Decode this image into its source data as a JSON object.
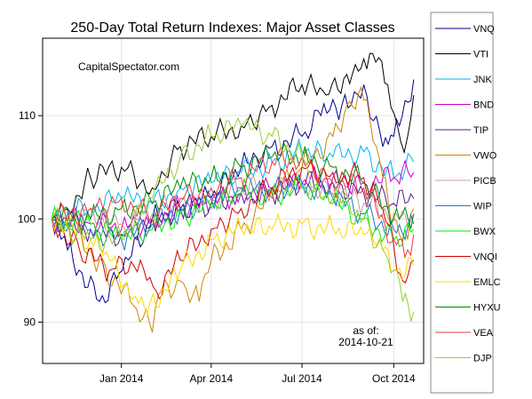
{
  "chart_data": {
    "type": "line",
    "title": "250-Day Total Return Indexes: Major Asset Classes",
    "source_label": "CapitalSpectator.com",
    "asof_label": "as of:",
    "asof_date": "2014-10-21",
    "xlabel": "",
    "ylabel": "",
    "x_start": "2013-10-23",
    "x_end": "2014-10-21",
    "xlim": [
      "2013-10-14",
      "2014-10-31"
    ],
    "ylim": [
      86,
      117.5
    ],
    "xticks": [
      {
        "date": "2014-01-01",
        "label": "Jan 2014"
      },
      {
        "date": "2014-04-01",
        "label": "Apr 2014"
      },
      {
        "date": "2014-07-01",
        "label": "Jul 2014"
      },
      {
        "date": "2014-10-01",
        "label": "Oct 2014"
      }
    ],
    "yticks": [
      {
        "value": 90,
        "label": "90"
      },
      {
        "value": 100,
        "label": "100"
      },
      {
        "value": 110,
        "label": "110"
      }
    ],
    "grid": true,
    "legend_position": "right",
    "series": [
      {
        "name": "VNQ",
        "color": "#00008B",
        "points": [
          [
            "2013-10-23",
            100
          ],
          [
            "2013-11-08",
            97
          ],
          [
            "2013-12-10",
            92
          ],
          [
            "2014-01-02",
            95
          ],
          [
            "2014-02-01",
            100
          ],
          [
            "2014-03-01",
            101
          ],
          [
            "2014-04-01",
            102
          ],
          [
            "2014-05-01",
            105
          ],
          [
            "2014-06-01",
            107
          ],
          [
            "2014-07-01",
            108
          ],
          [
            "2014-07-20",
            110
          ],
          [
            "2014-08-10",
            111
          ],
          [
            "2014-09-01",
            113
          ],
          [
            "2014-09-20",
            107
          ],
          [
            "2014-10-01",
            108
          ],
          [
            "2014-10-21",
            113.5
          ]
        ]
      },
      {
        "name": "VTI",
        "color": "#000000",
        "points": [
          [
            "2013-10-23",
            100
          ],
          [
            "2013-11-08",
            101
          ],
          [
            "2013-12-01",
            104
          ],
          [
            "2014-01-01",
            105
          ],
          [
            "2014-02-01",
            103
          ],
          [
            "2014-03-01",
            107
          ],
          [
            "2014-04-01",
            108
          ],
          [
            "2014-05-01",
            109
          ],
          [
            "2014-06-01",
            111
          ],
          [
            "2014-07-01",
            113
          ],
          [
            "2014-07-25",
            112
          ],
          [
            "2014-08-15",
            114
          ],
          [
            "2014-09-01",
            115.5
          ],
          [
            "2014-09-10",
            116
          ],
          [
            "2014-09-25",
            113
          ],
          [
            "2014-10-08",
            107.5
          ],
          [
            "2014-10-15",
            108
          ],
          [
            "2014-10-21",
            112
          ]
        ]
      },
      {
        "name": "JNK",
        "color": "#00B2EE",
        "points": [
          [
            "2013-10-23",
            100
          ],
          [
            "2013-12-01",
            101
          ],
          [
            "2014-01-01",
            102
          ],
          [
            "2014-02-01",
            101.5
          ],
          [
            "2014-03-01",
            103
          ],
          [
            "2014-04-01",
            103.5
          ],
          [
            "2014-05-01",
            104.5
          ],
          [
            "2014-06-01",
            105.5
          ],
          [
            "2014-07-01",
            106.5
          ],
          [
            "2014-08-01",
            106
          ],
          [
            "2014-09-01",
            106.5
          ],
          [
            "2014-10-01",
            104
          ],
          [
            "2014-10-21",
            105.5
          ]
        ]
      },
      {
        "name": "BND",
        "color": "#CD00CD",
        "points": [
          [
            "2013-10-23",
            100
          ],
          [
            "2013-12-01",
            99.5
          ],
          [
            "2014-01-01",
            99
          ],
          [
            "2014-02-01",
            100
          ],
          [
            "2014-03-01",
            101
          ],
          [
            "2014-04-01",
            101.5
          ],
          [
            "2014-05-01",
            102.5
          ],
          [
            "2014-06-01",
            103
          ],
          [
            "2014-07-01",
            103.5
          ],
          [
            "2014-08-01",
            104
          ],
          [
            "2014-09-01",
            103.5
          ],
          [
            "2014-10-01",
            104
          ],
          [
            "2014-10-21",
            104.5
          ]
        ]
      },
      {
        "name": "TIP",
        "color": "#551A8B",
        "points": [
          [
            "2013-10-23",
            100
          ],
          [
            "2013-12-01",
            99
          ],
          [
            "2014-01-01",
            98.5
          ],
          [
            "2014-02-01",
            100
          ],
          [
            "2014-03-01",
            101
          ],
          [
            "2014-04-01",
            101.5
          ],
          [
            "2014-05-01",
            102.5
          ],
          [
            "2014-06-01",
            102.5
          ],
          [
            "2014-07-01",
            103.5
          ],
          [
            "2014-08-01",
            103.5
          ],
          [
            "2014-09-01",
            102.5
          ],
          [
            "2014-10-01",
            101.5
          ],
          [
            "2014-10-21",
            102
          ]
        ]
      },
      {
        "name": "VWO",
        "color": "#CD8500",
        "points": [
          [
            "2013-10-23",
            100
          ],
          [
            "2013-11-15",
            98
          ],
          [
            "2013-12-10",
            96
          ],
          [
            "2014-01-10",
            92
          ],
          [
            "2014-02-01",
            89
          ],
          [
            "2014-02-10",
            93
          ],
          [
            "2014-03-01",
            94
          ],
          [
            "2014-03-20",
            92
          ],
          [
            "2014-04-01",
            96
          ],
          [
            "2014-05-01",
            99
          ],
          [
            "2014-06-01",
            102
          ],
          [
            "2014-07-01",
            105
          ],
          [
            "2014-08-01",
            108
          ],
          [
            "2014-08-15",
            111
          ],
          [
            "2014-09-01",
            111.5
          ],
          [
            "2014-09-20",
            104
          ],
          [
            "2014-10-01",
            100
          ],
          [
            "2014-10-15",
            98
          ],
          [
            "2014-10-21",
            101
          ]
        ]
      },
      {
        "name": "PICB",
        "color": "#CD9B9B",
        "points": [
          [
            "2013-10-23",
            100
          ],
          [
            "2013-12-01",
            100
          ],
          [
            "2014-01-01",
            99.5
          ],
          [
            "2014-02-01",
            100.5
          ],
          [
            "2014-03-01",
            101.5
          ],
          [
            "2014-04-01",
            102
          ],
          [
            "2014-05-01",
            103
          ],
          [
            "2014-06-01",
            103
          ],
          [
            "2014-07-01",
            103.5
          ],
          [
            "2014-08-01",
            102.5
          ],
          [
            "2014-09-01",
            101.5
          ],
          [
            "2014-10-01",
            100.5
          ],
          [
            "2014-10-21",
            100.5
          ]
        ]
      },
      {
        "name": "WIP",
        "color": "#1874CD",
        "points": [
          [
            "2013-10-23",
            100
          ],
          [
            "2013-12-01",
            99
          ],
          [
            "2014-01-01",
            98
          ],
          [
            "2014-02-01",
            99.5
          ],
          [
            "2014-03-01",
            101
          ],
          [
            "2014-04-01",
            102
          ],
          [
            "2014-05-01",
            103
          ],
          [
            "2014-06-01",
            103
          ],
          [
            "2014-07-01",
            103.5
          ],
          [
            "2014-08-01",
            102
          ],
          [
            "2014-09-01",
            100.5
          ],
          [
            "2014-10-01",
            99
          ],
          [
            "2014-10-21",
            99.5
          ]
        ]
      },
      {
        "name": "BWX",
        "color": "#00EE00",
        "points": [
          [
            "2013-10-23",
            100
          ],
          [
            "2013-12-01",
            99.5
          ],
          [
            "2014-01-01",
            98
          ],
          [
            "2014-02-01",
            99
          ],
          [
            "2014-03-01",
            100.5
          ],
          [
            "2014-04-01",
            101
          ],
          [
            "2014-05-01",
            102.5
          ],
          [
            "2014-06-01",
            102.5
          ],
          [
            "2014-07-01",
            103
          ],
          [
            "2014-08-01",
            101.5
          ],
          [
            "2014-09-01",
            100
          ],
          [
            "2014-10-01",
            98
          ],
          [
            "2014-10-21",
            99
          ]
        ]
      },
      {
        "name": "VNQI",
        "color": "#CD0000",
        "points": [
          [
            "2013-10-23",
            100
          ],
          [
            "2013-11-20",
            97
          ],
          [
            "2013-12-20",
            95
          ],
          [
            "2014-01-20",
            96
          ],
          [
            "2014-02-05",
            93
          ],
          [
            "2014-03-01",
            96
          ],
          [
            "2014-04-01",
            99
          ],
          [
            "2014-05-01",
            101
          ],
          [
            "2014-06-01",
            103
          ],
          [
            "2014-07-01",
            105
          ],
          [
            "2014-08-01",
            104.5
          ],
          [
            "2014-09-01",
            104
          ],
          [
            "2014-09-20",
            101
          ],
          [
            "2014-10-10",
            94
          ],
          [
            "2014-10-21",
            96
          ]
        ]
      },
      {
        "name": "EMLC",
        "color": "#FFD700",
        "points": [
          [
            "2013-10-23",
            100
          ],
          [
            "2013-12-01",
            98
          ],
          [
            "2013-12-20",
            96
          ],
          [
            "2014-01-15",
            92.5
          ],
          [
            "2014-02-05",
            91.5
          ],
          [
            "2014-03-01",
            95
          ],
          [
            "2014-04-01",
            98
          ],
          [
            "2014-05-01",
            99
          ],
          [
            "2014-06-01",
            99
          ],
          [
            "2014-07-01",
            99.5
          ],
          [
            "2014-08-01",
            99
          ],
          [
            "2014-09-01",
            98.5
          ],
          [
            "2014-09-20",
            97
          ],
          [
            "2014-10-01",
            95
          ],
          [
            "2014-10-21",
            95.5
          ]
        ]
      },
      {
        "name": "HYXU",
        "color": "#008B00",
        "points": [
          [
            "2013-10-23",
            100
          ],
          [
            "2013-12-01",
            100
          ],
          [
            "2014-01-01",
            101
          ],
          [
            "2014-02-01",
            101.5
          ],
          [
            "2014-03-01",
            103
          ],
          [
            "2014-04-01",
            104
          ],
          [
            "2014-05-01",
            105
          ],
          [
            "2014-06-01",
            106
          ],
          [
            "2014-07-01",
            106
          ],
          [
            "2014-08-01",
            105
          ],
          [
            "2014-09-01",
            103.5
          ],
          [
            "2014-10-01",
            100
          ],
          [
            "2014-10-21",
            100.5
          ]
        ]
      },
      {
        "name": "VEA",
        "color": "#EE3B3B",
        "points": [
          [
            "2013-10-23",
            100
          ],
          [
            "2013-12-01",
            101
          ],
          [
            "2014-01-01",
            102
          ],
          [
            "2014-02-01",
            100
          ],
          [
            "2014-03-01",
            102
          ],
          [
            "2014-04-01",
            103
          ],
          [
            "2014-05-01",
            104
          ],
          [
            "2014-06-01",
            105.5
          ],
          [
            "2014-07-01",
            106
          ],
          [
            "2014-08-01",
            103.5
          ],
          [
            "2014-09-01",
            103
          ],
          [
            "2014-10-01",
            98
          ],
          [
            "2014-10-15",
            97
          ],
          [
            "2014-10-21",
            98.5
          ]
        ]
      },
      {
        "name": "DJP",
        "color": "#9ACD32",
        "points": [
          [
            "2013-10-23",
            100
          ],
          [
            "2013-12-01",
            98
          ],
          [
            "2014-01-01",
            98
          ],
          [
            "2014-02-01",
            102
          ],
          [
            "2014-03-01",
            106
          ],
          [
            "2014-04-01",
            108
          ],
          [
            "2014-05-01",
            109
          ],
          [
            "2014-06-01",
            108
          ],
          [
            "2014-07-01",
            106
          ],
          [
            "2014-07-20",
            102
          ],
          [
            "2014-08-10",
            101.5
          ],
          [
            "2014-09-01",
            100
          ],
          [
            "2014-09-20",
            97
          ],
          [
            "2014-10-01",
            95
          ],
          [
            "2014-10-10",
            92
          ],
          [
            "2014-10-21",
            91
          ]
        ]
      }
    ]
  }
}
